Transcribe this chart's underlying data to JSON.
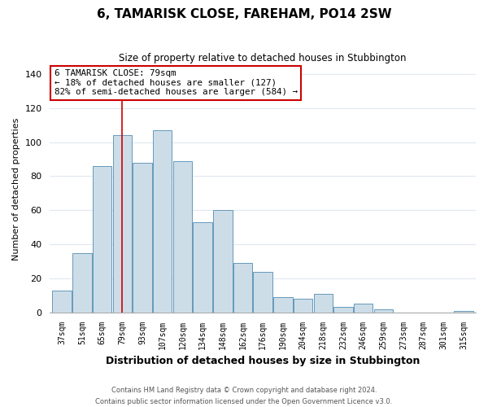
{
  "title": "6, TAMARISK CLOSE, FAREHAM, PO14 2SW",
  "subtitle": "Size of property relative to detached houses in Stubbington",
  "xlabel": "Distribution of detached houses by size in Stubbington",
  "ylabel": "Number of detached properties",
  "footer_lines": [
    "Contains HM Land Registry data © Crown copyright and database right 2024.",
    "Contains public sector information licensed under the Open Government Licence v3.0."
  ],
  "bin_labels": [
    "37sqm",
    "51sqm",
    "65sqm",
    "79sqm",
    "93sqm",
    "107sqm",
    "120sqm",
    "134sqm",
    "148sqm",
    "162sqm",
    "176sqm",
    "190sqm",
    "204sqm",
    "218sqm",
    "232sqm",
    "246sqm",
    "259sqm",
    "273sqm",
    "287sqm",
    "301sqm",
    "315sqm"
  ],
  "bar_heights": [
    13,
    35,
    86,
    104,
    88,
    107,
    89,
    53,
    60,
    29,
    24,
    9,
    8,
    11,
    3,
    5,
    2,
    0,
    0,
    0,
    1
  ],
  "bar_color": "#ccdde8",
  "bar_edge_color": "#6699bb",
  "vline_x_index": 3,
  "vline_color": "#cc0000",
  "annotation_text": "6 TAMARISK CLOSE: 79sqm\n← 18% of detached houses are smaller (127)\n82% of semi-detached houses are larger (584) →",
  "annotation_box_color": "#ffffff",
  "annotation_box_edge_color": "#cc0000",
  "ylim": [
    0,
    145
  ],
  "background_color": "#ffffff",
  "grid_color": "#e0e8f0"
}
